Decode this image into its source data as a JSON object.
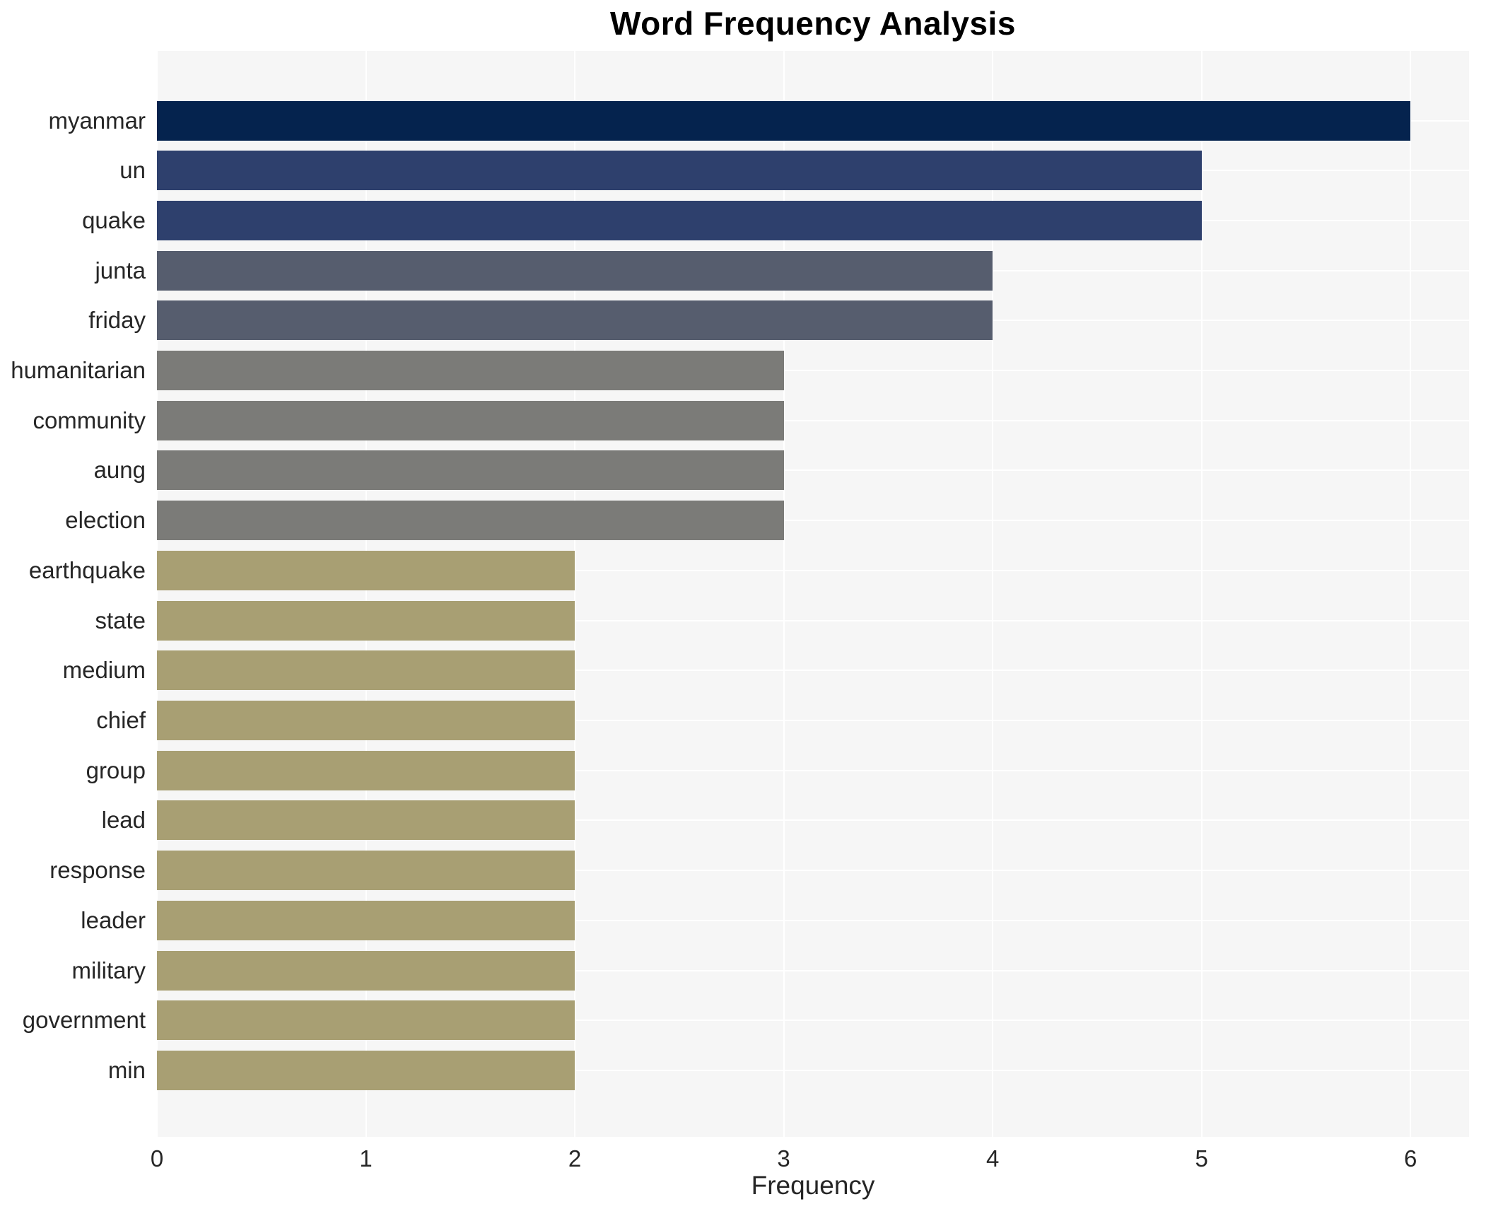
{
  "chart_data": {
    "type": "bar",
    "orientation": "horizontal",
    "title": "Word Frequency Analysis",
    "xlabel": "Frequency",
    "ylabel": "",
    "categories": [
      "myanmar",
      "un",
      "quake",
      "junta",
      "friday",
      "humanitarian",
      "community",
      "aung",
      "election",
      "earthquake",
      "state",
      "medium",
      "chief",
      "group",
      "lead",
      "response",
      "leader",
      "military",
      "government",
      "min"
    ],
    "values": [
      6,
      5,
      5,
      4,
      4,
      3,
      3,
      3,
      3,
      2,
      2,
      2,
      2,
      2,
      2,
      2,
      2,
      2,
      2,
      2
    ],
    "bar_colors": [
      "#05234e",
      "#2e406d",
      "#2e406d",
      "#565d6e",
      "#565d6e",
      "#7b7b78",
      "#7b7b78",
      "#7b7b78",
      "#7b7b78",
      "#a89f73",
      "#a89f73",
      "#a89f73",
      "#a89f73",
      "#a89f73",
      "#a89f73",
      "#a89f73",
      "#a89f73",
      "#a89f73",
      "#a89f73",
      "#a89f73"
    ],
    "color_by_value": {
      "6": "#05234e",
      "5": "#2e406d",
      "4": "#565d6e",
      "3": "#7b7b78",
      "2": "#a89f73"
    },
    "xticks": [
      0,
      1,
      2,
      3,
      4,
      5,
      6
    ],
    "xlim": [
      0,
      6.28
    ],
    "grid": true,
    "legend": false,
    "plot_bg_color": "#f6f6f6",
    "grid_color": "#ffffff",
    "text_color": "#262626",
    "title_color": "#000000"
  }
}
